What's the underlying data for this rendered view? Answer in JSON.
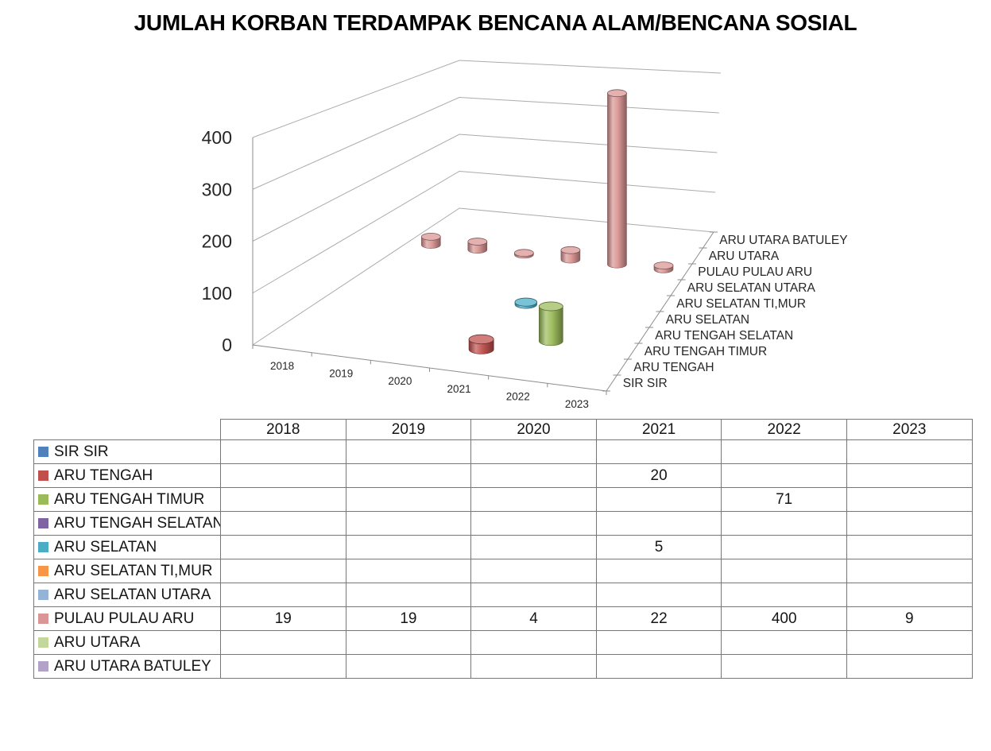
{
  "title": "JUMLAH KORBAN TERDAMPAK BENCANA ALAM/BENCANA SOSIAL",
  "chart_data": {
    "type": "bar",
    "subtype": "3d-cylinder",
    "title": "JUMLAH KORBAN TERDAMPAK BENCANA ALAM/BENCANA SOSIAL",
    "categories": [
      "2018",
      "2019",
      "2020",
      "2021",
      "2022",
      "2023"
    ],
    "series": [
      {
        "name": "SIR SIR",
        "color": "#4F81BD",
        "values": [
          null,
          null,
          null,
          null,
          null,
          null
        ]
      },
      {
        "name": "ARU TENGAH",
        "color": "#C0504D",
        "values": [
          null,
          null,
          null,
          20,
          null,
          null
        ]
      },
      {
        "name": "ARU TENGAH TIMUR",
        "color": "#9BBB59",
        "values": [
          null,
          null,
          null,
          null,
          71,
          null
        ]
      },
      {
        "name": "ARU TENGAH SELATAN",
        "color": "#8064A2",
        "values": [
          null,
          null,
          null,
          null,
          null,
          null
        ]
      },
      {
        "name": "ARU SELATAN",
        "color": "#4BACC6",
        "values": [
          null,
          null,
          null,
          5,
          null,
          null
        ]
      },
      {
        "name": "ARU SELATAN TI,MUR",
        "color": "#F79646",
        "values": [
          null,
          null,
          null,
          null,
          null,
          null
        ]
      },
      {
        "name": "ARU SELATAN UTARA",
        "color": "#95B3D7",
        "values": [
          null,
          null,
          null,
          null,
          null,
          null
        ]
      },
      {
        "name": "PULAU PULAU ARU",
        "color": "#D99694",
        "values": [
          19,
          19,
          4,
          22,
          400,
          9
        ]
      },
      {
        "name": "ARU UTARA",
        "color": "#C3D69B",
        "values": [
          null,
          null,
          null,
          null,
          null,
          null
        ]
      },
      {
        "name": "ARU UTARA BATULEY",
        "color": "#B3A2C7",
        "values": [
          null,
          null,
          null,
          null,
          null,
          null
        ]
      }
    ],
    "value_axis": {
      "min": 0,
      "max": 400,
      "step": 100,
      "ticks": [
        "0",
        "100",
        "200",
        "300",
        "400"
      ]
    },
    "grid": true,
    "legend_position": "data-table-below-chart",
    "colors": {
      "gridline": "#ABABAB",
      "axis_line": "#8C8C8C",
      "table_border": "#777777",
      "text": "#262626"
    }
  },
  "table": {
    "corner_label": ""
  }
}
